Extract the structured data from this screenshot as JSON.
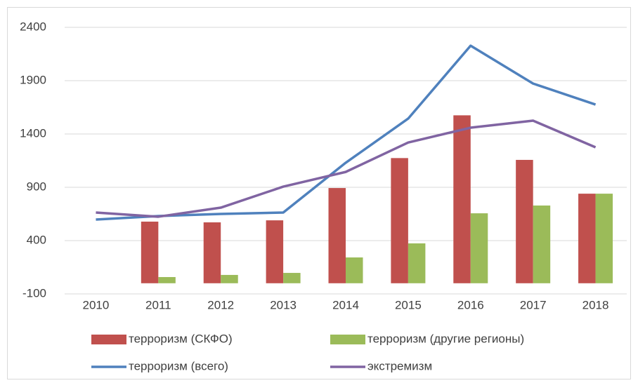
{
  "chart_data": {
    "type": "bar",
    "categories": [
      "2010",
      "2011",
      "2012",
      "2013",
      "2014",
      "2015",
      "2016",
      "2017",
      "2018"
    ],
    "series": [
      {
        "name": "терроризм (СКФО)",
        "type": "bar",
        "color": "#c0504d",
        "values": [
          null,
          578,
          571,
          590,
          893,
          1174,
          1575,
          1157,
          840
        ]
      },
      {
        "name": "терроризм (другие регионы)",
        "type": "bar",
        "color": "#9bbb59",
        "values": [
          null,
          58,
          78,
          97,
          242,
          374,
          656,
          729,
          840
        ]
      },
      {
        "name": "терроризм (всего)",
        "type": "line",
        "color": "#4f81bd",
        "values": [
          597,
          630,
          650,
          663,
          1130,
          1544,
          2228,
          1873,
          1676
        ]
      },
      {
        "name": "экстремизм",
        "type": "line",
        "color": "#8064a2",
        "values": [
          663,
          624,
          709,
          906,
          1044,
          1320,
          1459,
          1525,
          1275
        ]
      }
    ],
    "ylim": [
      -100,
      2400
    ],
    "yticks": [
      -100,
      400,
      900,
      1400,
      1900,
      2400
    ],
    "grid": true,
    "legend": "bottom"
  }
}
